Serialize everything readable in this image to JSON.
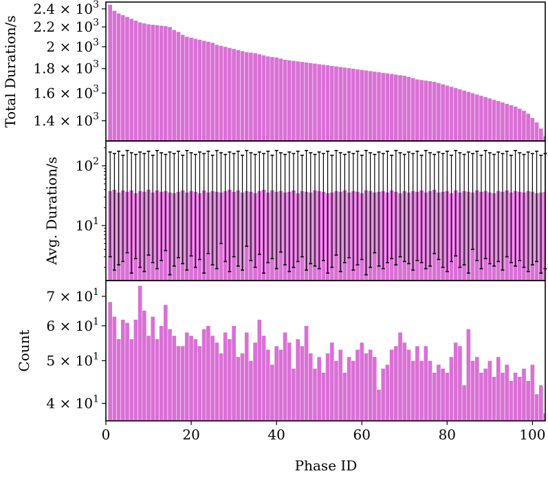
{
  "chart_data": {
    "type": "bar",
    "shared_x": {
      "label": "Phase ID",
      "xlim": [
        0,
        103
      ],
      "ticks": [
        0,
        20,
        40,
        60,
        80,
        100
      ]
    },
    "bar_color": "#da70d6",
    "errorbar_color": "#000000",
    "panels": [
      {
        "id": "total",
        "ylabel": "Total Duration/s",
        "scale": "log",
        "ylim": [
          1270,
          2480
        ],
        "tick_values": [
          1400,
          1600,
          1800,
          2000,
          2200,
          2400
        ],
        "tick_labels": [
          {
            "mant": "1.4",
            "exp": "3"
          },
          {
            "mant": "1.6",
            "exp": "3"
          },
          {
            "mant": "1.8",
            "exp": "3"
          },
          {
            "mant": "2",
            "exp": "3"
          },
          {
            "mant": "2.2",
            "exp": "3"
          },
          {
            "mant": "2.4",
            "exp": "3"
          }
        ],
        "values": [
          2450,
          2380,
          2350,
          2330,
          2310,
          2290,
          2270,
          2250,
          2240,
          2230,
          2225,
          2220,
          2215,
          2210,
          2200,
          2170,
          2150,
          2120,
          2100,
          2090,
          2080,
          2070,
          2060,
          2050,
          2040,
          2020,
          2010,
          2000,
          1990,
          1980,
          1970,
          1960,
          1950,
          1945,
          1940,
          1930,
          1920,
          1910,
          1905,
          1900,
          1890,
          1880,
          1875,
          1870,
          1865,
          1860,
          1855,
          1850,
          1845,
          1840,
          1835,
          1830,
          1825,
          1820,
          1815,
          1810,
          1805,
          1800,
          1795,
          1790,
          1785,
          1780,
          1775,
          1770,
          1765,
          1760,
          1755,
          1750,
          1745,
          1740,
          1730,
          1720,
          1710,
          1705,
          1700,
          1695,
          1690,
          1680,
          1670,
          1660,
          1650,
          1640,
          1630,
          1620,
          1610,
          1600,
          1590,
          1580,
          1570,
          1560,
          1550,
          1540,
          1530,
          1520,
          1510,
          1500,
          1485,
          1470,
          1450,
          1420,
          1390,
          1350,
          1300
        ]
      },
      {
        "id": "avg",
        "ylabel": "Avg. Duration/s",
        "scale": "log",
        "ylim": [
          1.2,
          260
        ],
        "tick_values": [
          10,
          100
        ],
        "tick_labels": [
          {
            "mant": "10",
            "exp": "1"
          },
          {
            "mant": "10",
            "exp": "2"
          }
        ],
        "values": [
          38,
          40,
          36,
          39,
          37,
          39,
          35,
          38,
          37,
          40,
          36,
          39,
          37,
          38,
          36,
          35,
          37,
          39,
          36,
          38,
          37,
          35,
          39,
          36,
          38,
          37,
          36,
          38,
          40,
          37,
          39,
          36,
          38,
          37,
          35,
          38,
          40,
          36,
          39,
          37,
          38,
          36,
          37,
          39,
          35,
          38,
          37,
          36,
          39,
          38,
          37,
          35,
          36,
          38,
          37,
          39,
          36,
          38,
          37,
          35,
          39,
          38,
          36,
          37,
          38,
          36,
          39,
          37,
          35,
          38,
          36,
          38,
          37,
          39,
          36,
          38,
          40,
          36,
          37,
          38,
          35,
          39,
          36,
          38,
          37,
          36,
          39,
          37,
          38,
          36,
          35,
          38,
          37,
          39,
          36,
          38,
          37,
          36,
          38,
          37,
          35,
          36,
          37
        ],
        "err_high": [
          170,
          160,
          175,
          150,
          180,
          165,
          155,
          170,
          160,
          175,
          150,
          180,
          165,
          155,
          170,
          160,
          175,
          150,
          180,
          165,
          155,
          170,
          160,
          175,
          150,
          180,
          165,
          155,
          170,
          160,
          175,
          150,
          180,
          165,
          155,
          170,
          160,
          175,
          150,
          180,
          165,
          155,
          170,
          160,
          175,
          150,
          180,
          165,
          155,
          170,
          160,
          175,
          150,
          180,
          165,
          155,
          170,
          160,
          175,
          150,
          180,
          165,
          155,
          170,
          160,
          175,
          150,
          180,
          165,
          155,
          170,
          160,
          175,
          150,
          180,
          165,
          155,
          170,
          160,
          175,
          150,
          180,
          165,
          155,
          170,
          160,
          175,
          150,
          180,
          165,
          155,
          170,
          160,
          175,
          150,
          180,
          165,
          155,
          170,
          160,
          175,
          150,
          160
        ],
        "err_low": [
          3.0,
          1.8,
          2.2,
          2.5,
          3.5,
          1.6,
          2.8,
          2.0,
          1.7,
          3.2,
          2.4,
          1.9,
          2.6,
          3.8,
          1.5,
          2.1,
          2.9,
          2.3,
          1.8,
          3.1,
          2.0,
          2.7,
          1.6,
          3.4,
          2.2,
          1.9,
          5.0,
          2.5,
          1.7,
          3.0,
          2.1,
          1.8,
          4.5,
          2.6,
          2.0,
          3.3,
          1.6,
          2.4,
          2.8,
          1.9,
          3.6,
          2.2,
          1.7,
          2.0,
          2.5,
          3.0,
          1.8,
          2.3,
          2.1,
          1.9,
          2.6,
          1.6,
          2.0,
          3.2,
          1.7,
          2.4,
          2.9,
          1.8,
          2.2,
          2.7,
          1.5,
          2.0,
          3.5,
          2.1,
          1.9,
          2.4,
          2.8,
          2.2,
          3.0,
          2.5,
          2.3,
          1.8,
          2.6,
          2.4,
          1.9,
          2.1,
          3.4,
          2.7,
          2.0,
          1.7,
          2.5,
          3.1,
          2.0,
          2.2,
          1.6,
          4.0,
          2.6,
          1.9,
          2.8,
          2.3,
          2.1,
          2.5,
          1.8,
          3.0,
          2.4,
          2.1,
          2.6,
          2.0,
          1.7,
          2.2,
          2.5,
          1.6,
          1.9
        ]
      },
      {
        "id": "count",
        "ylabel": "Count",
        "scale": "log",
        "ylim": [
          36.5,
          76
        ],
        "tick_values": [
          40,
          50,
          60,
          70
        ],
        "tick_labels": [
          {
            "mant": "4",
            "exp": "1"
          },
          {
            "mant": "5",
            "exp": "1"
          },
          {
            "mant": "6",
            "exp": "1"
          },
          {
            "mant": "7",
            "exp": "1"
          }
        ],
        "values": [
          68,
          63,
          56,
          62,
          61,
          56,
          62,
          74,
          65,
          57,
          63,
          56,
          60,
          67,
          59,
          57,
          54,
          54,
          58,
          57,
          56,
          54,
          59,
          60,
          57,
          55,
          52,
          58,
          56,
          60,
          51,
          52,
          58,
          50,
          55,
          62,
          57,
          53,
          49,
          54,
          53,
          58,
          55,
          48,
          56,
          54,
          60,
          52,
          48,
          51,
          47,
          52,
          55,
          50,
          53,
          47,
          51,
          50,
          53,
          55,
          52,
          53,
          51,
          43,
          48,
          49,
          53,
          54,
          58,
          55,
          53,
          50,
          54,
          50,
          54,
          50,
          47,
          49,
          48,
          47,
          51,
          55,
          54,
          44,
          59,
          50,
          51,
          47,
          48,
          50,
          46,
          51,
          47,
          49,
          45,
          47,
          46,
          48,
          45,
          49,
          42,
          44,
          38
        ]
      }
    ]
  }
}
